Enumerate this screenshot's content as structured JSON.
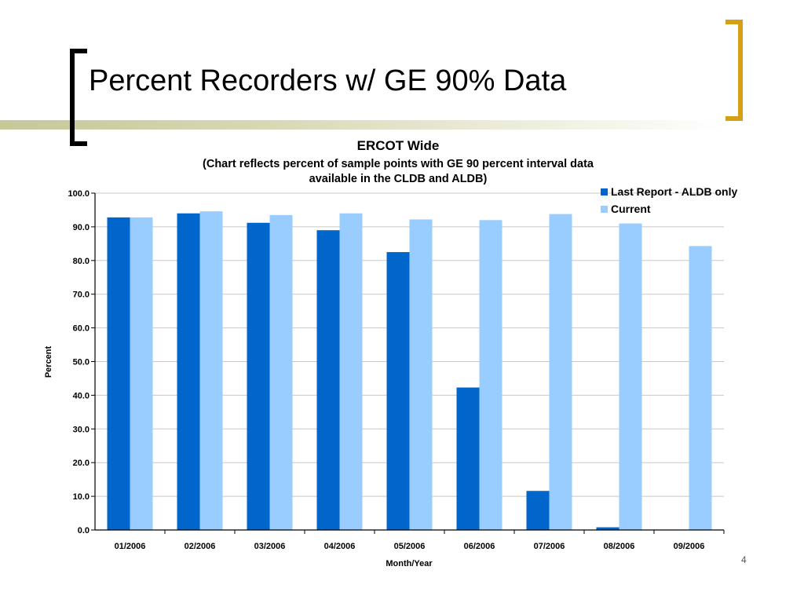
{
  "slide": {
    "title": "Percent Recorders w/ GE 90% Data",
    "page_number": "4"
  },
  "colors": {
    "series_1": "#0066cc",
    "series_2": "#99ccff",
    "accent_bracket": "#d4a017"
  },
  "chart_data": {
    "type": "bar",
    "title": "ERCOT Wide",
    "subtitle_line1": "(Chart reflects percent of sample points with GE 90 percent interval data",
    "subtitle_line2": "available in the CLDB and ALDB)",
    "xlabel": "Month/Year",
    "ylabel": "Percent",
    "ylim": [
      0,
      100
    ],
    "yticks": [
      "0.0",
      "10.0",
      "20.0",
      "30.0",
      "40.0",
      "50.0",
      "60.0",
      "70.0",
      "80.0",
      "90.0",
      "100.0"
    ],
    "grid": true,
    "legend_position": "top-right",
    "categories": [
      "01/2006",
      "02/2006",
      "03/2006",
      "04/2006",
      "05/2006",
      "06/2006",
      "07/2006",
      "08/2006",
      "09/2006"
    ],
    "series": [
      {
        "name": "Last Report - ALDB only",
        "values": [
          92.8,
          94.0,
          91.2,
          89.0,
          82.5,
          42.3,
          11.6,
          0.8,
          0.0
        ]
      },
      {
        "name": "Current",
        "values": [
          92.8,
          94.6,
          93.5,
          94.0,
          92.2,
          92.0,
          93.8,
          91.0,
          84.3
        ]
      }
    ]
  }
}
